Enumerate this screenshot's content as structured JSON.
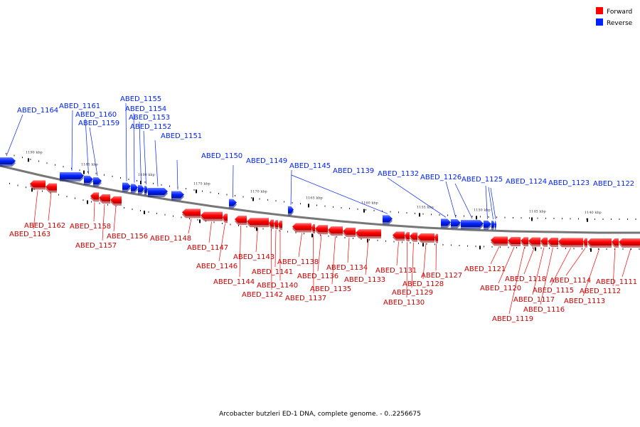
{
  "caption": "Arcobacter butzleri ED-1 DNA, complete genome. - 0..2256675",
  "legend": [
    {
      "name": "Forward",
      "color": "#ff0000"
    },
    {
      "name": "Reverse",
      "color": "#0022ff"
    }
  ],
  "colors": {
    "forward": "#ff0000",
    "reverse": "#0022ff",
    "backbone": "#777777"
  },
  "ticks": [
    {
      "label": "1190 kbp",
      "kbp": 1190
    },
    {
      "label": "1185 kbp",
      "kbp": 1185
    },
    {
      "label": "1180 kbp",
      "kbp": 1180
    },
    {
      "label": "1175 kbp",
      "kbp": 1175
    },
    {
      "label": "1170 kbp",
      "kbp": 1170
    },
    {
      "label": "1165 kbp",
      "kbp": 1165
    },
    {
      "label": "1160 kbp",
      "kbp": 1160
    },
    {
      "label": "1155 kbp",
      "kbp": 1155
    },
    {
      "label": "1150 kbp",
      "kbp": 1150
    },
    {
      "label": "1145 kbp",
      "kbp": 1145
    },
    {
      "label": "1140 kbp",
      "kbp": 1140
    }
  ],
  "reverse_genes": [
    {
      "label": "ABED_1164"
    },
    {
      "label": "ABED_1161"
    },
    {
      "label": "ABED_1160"
    },
    {
      "label": "ABED_1159"
    },
    {
      "label": "ABED_1155"
    },
    {
      "label": "ABED_1154"
    },
    {
      "label": "ABED_1153"
    },
    {
      "label": "ABED_1152"
    },
    {
      "label": "ABED_1151"
    },
    {
      "label": "ABED_1150"
    },
    {
      "label": "ABED_1149"
    },
    {
      "label": "ABED_1145"
    },
    {
      "label": "ABED_1139"
    },
    {
      "label": "ABED_1132"
    },
    {
      "label": "ABED_1126"
    },
    {
      "label": "ABED_1125"
    },
    {
      "label": "ABED_1124"
    },
    {
      "label": "ABED_1123"
    },
    {
      "label": "ABED_1122"
    }
  ],
  "forward_genes": [
    {
      "label": "ABED_1163"
    },
    {
      "label": "ABED_1162"
    },
    {
      "label": "ABED_1158"
    },
    {
      "label": "ABED_1157"
    },
    {
      "label": "ABED_1156"
    },
    {
      "label": "ABED_1148"
    },
    {
      "label": "ABED_1147"
    },
    {
      "label": "ABED_1146"
    },
    {
      "label": "ABED_1144"
    },
    {
      "label": "ABED_1143"
    },
    {
      "label": "ABED_1142"
    },
    {
      "label": "ABED_1141"
    },
    {
      "label": "ABED_1140"
    },
    {
      "label": "ABED_1138"
    },
    {
      "label": "ABED_1137"
    },
    {
      "label": "ABED_1136"
    },
    {
      "label": "ABED_1135"
    },
    {
      "label": "ABED_1134"
    },
    {
      "label": "ABED_1133"
    },
    {
      "label": "ABED_1131"
    },
    {
      "label": "ABED_1130"
    },
    {
      "label": "ABED_1129"
    },
    {
      "label": "ABED_1128"
    },
    {
      "label": "ABED_1127"
    },
    {
      "label": "ABED_1121"
    },
    {
      "label": "ABED_1120"
    },
    {
      "label": "ABED_1119"
    },
    {
      "label": "ABED_1118"
    },
    {
      "label": "ABED_1117"
    },
    {
      "label": "ABED_1116"
    },
    {
      "label": "ABED_1115"
    },
    {
      "label": "ABED_1114"
    },
    {
      "label": "ABED_1113"
    },
    {
      "label": "ABED_1112"
    },
    {
      "label": "ABED_1111"
    }
  ]
}
